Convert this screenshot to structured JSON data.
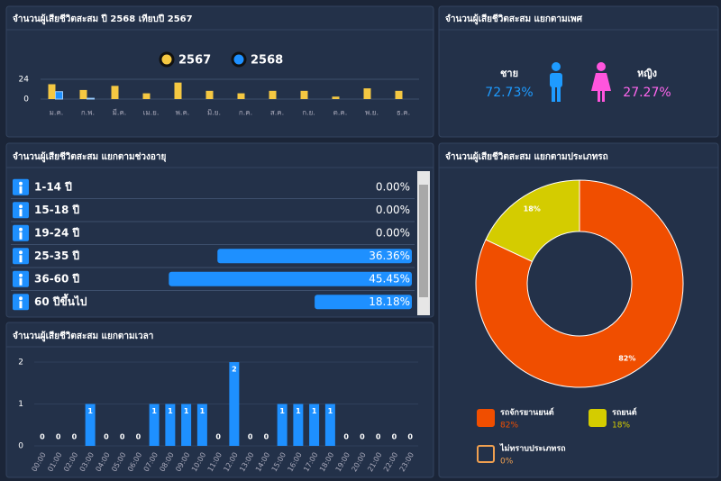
{
  "chart_data": [
    {
      "type": "bar",
      "title": "จำนวนผู้เสียชีวิตสะสม ปี 2568 เทียบปี 2567",
      "categories": [
        "ม.ค.",
        "ก.พ.",
        "มี.ค.",
        "เม.ย.",
        "พ.ค.",
        "มิ.ย.",
        "ก.ค.",
        "ส.ค.",
        "ก.ย.",
        "ต.ค.",
        "พ.ย.",
        "ธ.ค."
      ],
      "series": [
        {
          "name": "2567",
          "color": "#f5c842",
          "values": [
            18,
            11,
            16,
            7,
            20,
            10,
            7,
            10,
            10,
            3,
            13,
            10
          ]
        },
        {
          "name": "2568",
          "color": "#1e90ff",
          "values": [
            9,
            1,
            0,
            0,
            0,
            0,
            0,
            0,
            0,
            0,
            0,
            0
          ]
        }
      ],
      "ylim": [
        0,
        24
      ],
      "yticks": [
        0,
        24
      ],
      "grid": true
    },
    {
      "type": "hbar",
      "title": "จำนวนผู้เสียชีวิตสะสม แยกตามช่วงอายุ",
      "categories": [
        "1-14 ปี",
        "15-18 ปี",
        "19-24 ปี",
        "25-35 ปี",
        "36-60 ปี",
        "60 ปีขึ้นไป"
      ],
      "values": [
        0,
        0,
        0,
        36.36,
        45.45,
        18.18
      ],
      "value_labels": [
        "0.00%",
        "0.00%",
        "0.00%",
        "36.36%",
        "45.45%",
        "18.18%"
      ],
      "xlim": [
        0,
        75
      ],
      "color": "#1e90ff"
    },
    {
      "type": "bar",
      "title": "จำนวนผู้เสียชีวิตสะสม แยกตามเวลา",
      "categories": [
        "00:00",
        "01:00",
        "02:00",
        "03:00",
        "04:00",
        "05:00",
        "06:00",
        "07:00",
        "08:00",
        "09:00",
        "10:00",
        "11:00",
        "12:00",
        "13:00",
        "14:00",
        "15:00",
        "16:00",
        "17:00",
        "18:00",
        "19:00",
        "20:00",
        "21:00",
        "22:00",
        "23:00"
      ],
      "series": [
        {
          "color": "#1e90ff",
          "values": [
            0,
            0,
            0,
            1,
            0,
            0,
            0,
            1,
            1,
            1,
            1,
            0,
            2,
            0,
            0,
            1,
            1,
            1,
            1,
            0,
            0,
            0,
            0,
            0
          ]
        }
      ],
      "ylim": [
        0,
        2
      ],
      "yticks": [
        0,
        1,
        2
      ],
      "grid": true
    },
    {
      "type": "donut",
      "title": "จำนวนผู้เสียชีวิตสะสม แยกตามประเภทรถ",
      "categories": [
        "รถจักรยานยนต์",
        "รถยนต์",
        "ไม่ทราบประเภทรถ"
      ],
      "values": [
        82,
        18,
        0
      ],
      "value_labels": [
        "82%",
        "18%",
        "0%"
      ],
      "colors": [
        "#f04e00",
        "#d4cc00",
        "#f0a050"
      ]
    }
  ],
  "gender": {
    "title": "จำนวนผู้เสียชีวิตสะสม แยกตามเพศ",
    "male": {
      "label": "ชาย",
      "value": "72.73%"
    },
    "female": {
      "label": "หญิง",
      "value": "27.27%"
    }
  }
}
